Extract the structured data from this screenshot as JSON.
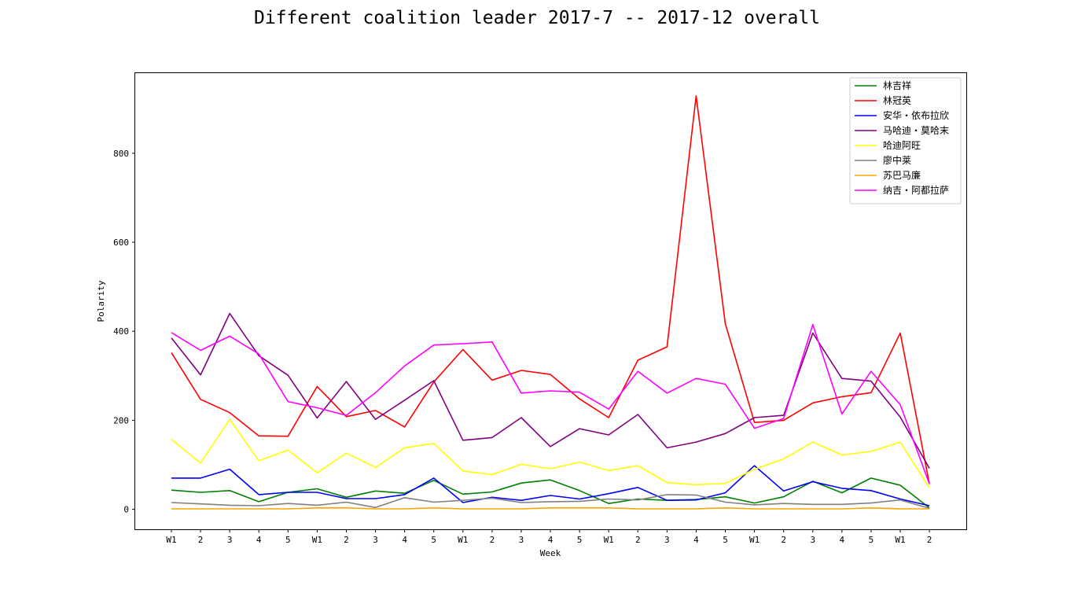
{
  "chart_data": {
    "type": "line",
    "title": "Different coalition leader 2017-7 -- 2017-12 overall",
    "xlabel": "Week",
    "ylabel": "Polarity",
    "ylim": [
      -45,
      980
    ],
    "yticks": [
      0,
      200,
      400,
      600,
      800
    ],
    "grid": false,
    "legend_position": "top-right",
    "categories": [
      "W1",
      "2",
      "3",
      "4",
      "5",
      "W1",
      "2",
      "3",
      "4",
      "5",
      "W1",
      "2",
      "3",
      "4",
      "5",
      "W1",
      "2",
      "3",
      "4",
      "5",
      "W1",
      "2",
      "3",
      "4",
      "5",
      "W1",
      "2"
    ],
    "series": [
      {
        "name": "林吉祥",
        "color": "#008000",
        "values": [
          43,
          38,
          42,
          17,
          38,
          46,
          27,
          41,
          36,
          65,
          34,
          39,
          59,
          66,
          42,
          13,
          23,
          20,
          22,
          28,
          14,
          28,
          63,
          37,
          70,
          54,
          3
        ]
      },
      {
        "name": "林冠英",
        "color": "#ff0000",
        "values": [
          352,
          247,
          217,
          165,
          164,
          276,
          208,
          222,
          185,
          286,
          359,
          290,
          312,
          303,
          248,
          206,
          335,
          365,
          929,
          417,
          195,
          200,
          239,
          253,
          262,
          396,
          57
        ]
      },
      {
        "name": "安华・依布拉欣",
        "color": "#0000ff",
        "values": [
          70,
          70,
          90,
          33,
          38,
          38,
          24,
          24,
          33,
          70,
          15,
          27,
          20,
          31,
          23,
          35,
          49,
          20,
          21,
          37,
          98,
          41,
          62,
          47,
          42,
          23,
          8
        ]
      },
      {
        "name": "马哈迪・莫哈末",
        "color": "#800080",
        "values": [
          385,
          302,
          440,
          345,
          301,
          205,
          287,
          202,
          245,
          289,
          155,
          161,
          206,
          141,
          181,
          167,
          213,
          138,
          151,
          170,
          206,
          211,
          396,
          294,
          288,
          207,
          92
        ]
      },
      {
        "name": "哈迪阿旺",
        "color": "#ffff00",
        "values": [
          157,
          104,
          202,
          109,
          133,
          82,
          126,
          94,
          138,
          148,
          86,
          78,
          101,
          91,
          106,
          87,
          98,
          60,
          55,
          58,
          90,
          113,
          151,
          122,
          130,
          151,
          48
        ]
      },
      {
        "name": "廖中莱",
        "color": "#808080",
        "values": [
          15,
          12,
          9,
          8,
          13,
          9,
          16,
          4,
          26,
          16,
          20,
          25,
          15,
          17,
          18,
          23,
          21,
          33,
          32,
          16,
          10,
          13,
          11,
          11,
          14,
          21,
          2
        ]
      },
      {
        "name": "苏巴马廉",
        "color": "#ffa500",
        "values": [
          1,
          1,
          1,
          1,
          1,
          3,
          3,
          1,
          1,
          3,
          1,
          1,
          1,
          3,
          3,
          3,
          1,
          1,
          1,
          3,
          1,
          1,
          1,
          1,
          3,
          1,
          1
        ]
      },
      {
        "name": "纳吉・阿都拉萨",
        "color": "#ff00ff",
        "values": [
          397,
          357,
          389,
          349,
          242,
          228,
          211,
          262,
          322,
          369,
          372,
          376,
          261,
          266,
          263,
          225,
          310,
          261,
          294,
          281,
          182,
          204,
          415,
          214,
          310,
          235,
          57
        ]
      }
    ]
  }
}
